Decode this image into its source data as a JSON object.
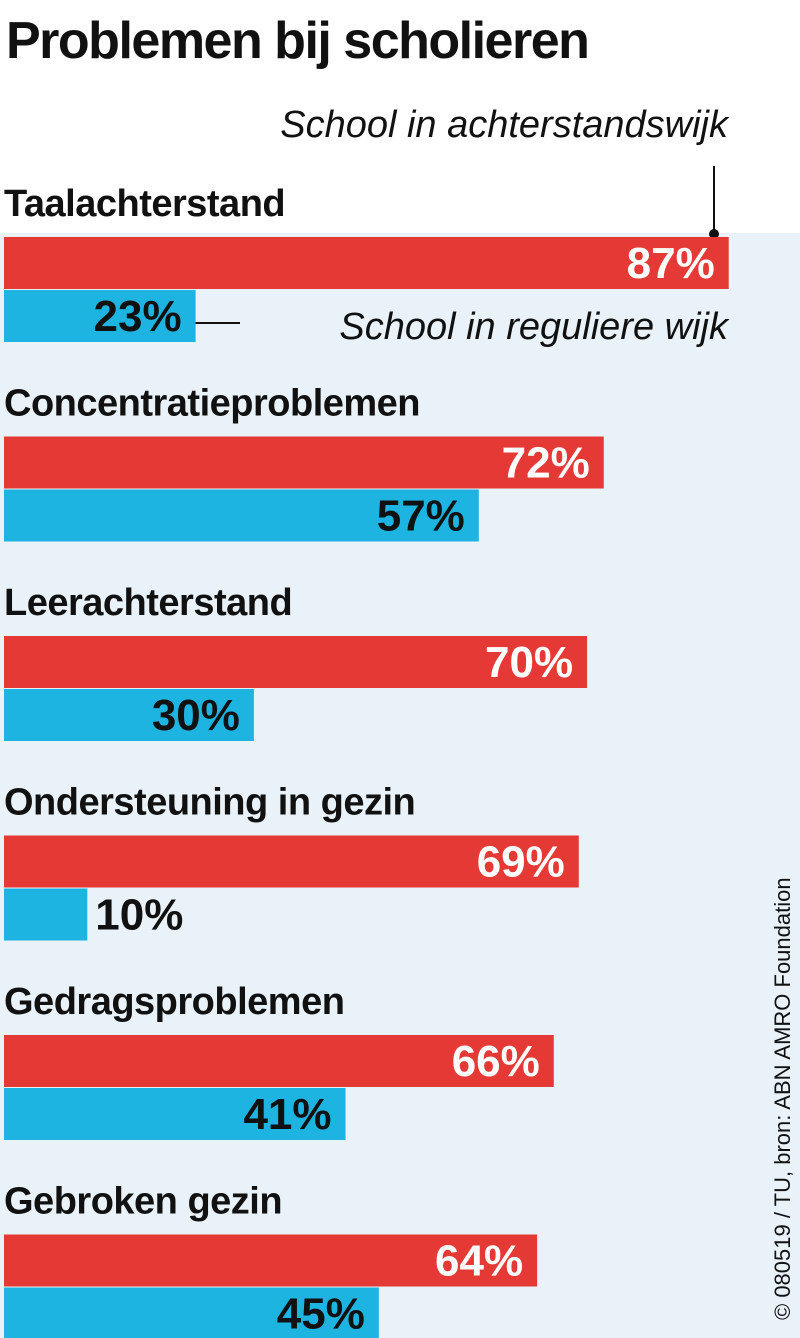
{
  "chart_data": {
    "type": "bar",
    "orientation": "horizontal",
    "title": "Problemen bij scholieren",
    "categories": [
      "Taalachterstand",
      "Concentratieproblemen",
      "Leerachterstand",
      "Ondersteuning in gezin",
      "Gedragsproblemen",
      "Gebroken gezin"
    ],
    "series": [
      {
        "name": "School in achterstandswijk",
        "color": "#e53935",
        "values": [
          87,
          72,
          70,
          69,
          66,
          64
        ]
      },
      {
        "name": "School in reguliere wijk",
        "color": "#1eb4e2",
        "values": [
          23,
          57,
          30,
          10,
          41,
          45
        ]
      }
    ],
    "value_suffix": "%",
    "xlim": [
      0,
      100
    ],
    "grid": false,
    "legend": "direct labels on first category"
  },
  "credit": "© 080519 / TU, bron: ABN AMRO Foundation"
}
